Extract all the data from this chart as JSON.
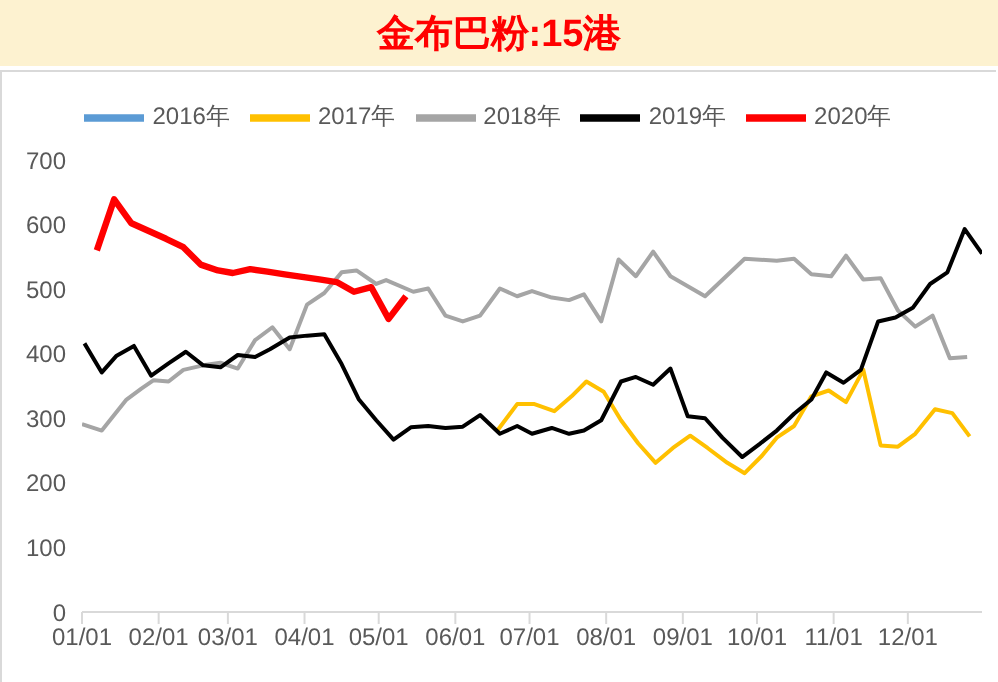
{
  "chart_data": {
    "type": "line",
    "title": "金布巴粉:15港",
    "legend": "top",
    "marker": "none",
    "xlim": [
      "--01-01",
      "--12-31"
    ],
    "xticks": [
      {
        "value": "--01-01",
        "label": "01/01"
      },
      {
        "value": "--02-01",
        "label": "02/01"
      },
      {
        "value": "--03-01",
        "label": "03/01"
      },
      {
        "value": "--04-01",
        "label": "04/01"
      },
      {
        "value": "--05-01",
        "label": "05/01"
      },
      {
        "value": "--06-01",
        "label": "06/01"
      },
      {
        "value": "--07-01",
        "label": "07/01"
      },
      {
        "value": "--08-01",
        "label": "08/01"
      },
      {
        "value": "--09-01",
        "label": "09/01"
      },
      {
        "value": "--10-01",
        "label": "10/01"
      },
      {
        "value": "--11-01",
        "label": "11/01"
      },
      {
        "value": "--12-01",
        "label": "12/01"
      }
    ],
    "ylim": [
      0,
      700
    ],
    "yticks": [
      0,
      100,
      200,
      300,
      400,
      500,
      600,
      700
    ],
    "series": [
      {
        "name": "2016年",
        "color": "#5b9bd5"
      },
      {
        "name": "2017年",
        "color": "#ffc000",
        "x": [
          "--06-18",
          "--06-26",
          "--07-03",
          "--07-11",
          "--07-18",
          "--07-24",
          "--07-31",
          "--08-07",
          "--08-14",
          "--08-21",
          "--08-28",
          "--09-04",
          "--09-11",
          "--09-19",
          "--09-26",
          "--10-03",
          "--10-09",
          "--10-16",
          "--10-23",
          "--10-30",
          "--11-06",
          "--11-13",
          "--11-20",
          "--11-27",
          "--12-04",
          "--12-12",
          "--12-19",
          "--12-26"
        ],
        "values": [
          281,
          322,
          322,
          311,
          334,
          357,
          341,
          297,
          261,
          231,
          254,
          273,
          254,
          231,
          215,
          242,
          270,
          288,
          334,
          343,
          325,
          375,
          258,
          256,
          276,
          314,
          308,
          272
        ]
      },
      {
        "name": "2018年",
        "color": "#a5a5a5",
        "x": [
          "--01-01",
          "--01-09",
          "--01-19",
          "--01-25",
          "--01-30",
          "--02-05",
          "--02-11",
          "--02-19",
          "--02-26",
          "--03-05",
          "--03-12",
          "--03-19",
          "--03-26",
          "--04-02",
          "--04-09",
          "--04-16",
          "--04-22",
          "--04-30",
          "--05-04",
          "--05-15",
          "--05-21",
          "--05-28",
          "--06-04",
          "--06-11",
          "--06-19",
          "--06-26",
          "--07-02",
          "--07-10",
          "--07-17",
          "--07-23",
          "--07-30",
          "--08-06",
          "--08-13",
          "--08-20",
          "--08-27",
          "--09-10",
          "--09-26",
          "--10-09",
          "--10-16",
          "--10-23",
          "--10-31",
          "--11-06",
          "--11-13",
          "--11-20",
          "--11-27",
          "--12-04",
          "--12-11",
          "--12-18",
          "--12-25"
        ],
        "values": [
          291,
          281,
          329,
          346,
          359,
          357,
          375,
          382,
          386,
          377,
          421,
          441,
          407,
          476,
          494,
          526,
          529,
          508,
          514,
          496,
          501,
          459,
          450,
          459,
          501,
          489,
          497,
          487,
          483,
          492,
          450,
          546,
          520,
          558,
          520,
          489,
          547,
          544,
          547,
          523,
          520,
          552,
          515,
          517,
          467,
          442,
          459,
          393,
          395
        ]
      },
      {
        "name": "2019年",
        "color": "#000000",
        "x": [
          "--01-02",
          "--01-09",
          "--01-15",
          "--01-22",
          "--01-29",
          "--02-05",
          "--02-12",
          "--02-19",
          "--02-26",
          "--03-05",
          "--03-12",
          "--03-18",
          "--03-26",
          "--04-02",
          "--04-09",
          "--04-16",
          "--04-23",
          "--04-30",
          "--05-07",
          "--05-14",
          "--05-21",
          "--05-28",
          "--06-04",
          "--06-11",
          "--06-19",
          "--06-26",
          "--07-02",
          "--07-10",
          "--07-17",
          "--07-23",
          "--07-30",
          "--08-07",
          "--08-13",
          "--08-20",
          "--08-27",
          "--09-03",
          "--09-10",
          "--09-17",
          "--09-25",
          "--10-02",
          "--10-09",
          "--10-16",
          "--10-23",
          "--10-29",
          "--11-05",
          "--11-12",
          "--11-19",
          "--11-26",
          "--12-03",
          "--12-10",
          "--12-17",
          "--12-24",
          "--12-31"
        ],
        "values": [
          416,
          371,
          397,
          412,
          366,
          385,
          403,
          382,
          379,
          398,
          395,
          407,
          425,
          428,
          430,
          384,
          329,
          297,
          267,
          286,
          288,
          285,
          287,
          305,
          276,
          288,
          276,
          285,
          276,
          281,
          297,
          357,
          364,
          352,
          377,
          303,
          300,
          270,
          240,
          260,
          281,
          307,
          329,
          371,
          355,
          375,
          450,
          456,
          471,
          508,
          526,
          593,
          555
        ]
      },
      {
        "name": "2020年",
        "color": "#ff0000",
        "x": [
          "--01-07",
          "--01-14",
          "--01-21",
          "--01-28",
          "--02-04",
          "--02-11",
          "--02-18",
          "--02-25",
          "--03-03",
          "--03-10",
          "--03-17",
          "--03-24",
          "--03-31",
          "--04-07",
          "--04-14",
          "--04-21",
          "--04-28",
          "--05-05",
          "--05-12"
        ],
        "values": [
          560,
          639,
          602,
          590,
          578,
          565,
          538,
          529,
          525,
          531,
          527,
          523,
          519,
          515,
          511,
          496,
          503,
          454,
          489
        ]
      }
    ]
  }
}
